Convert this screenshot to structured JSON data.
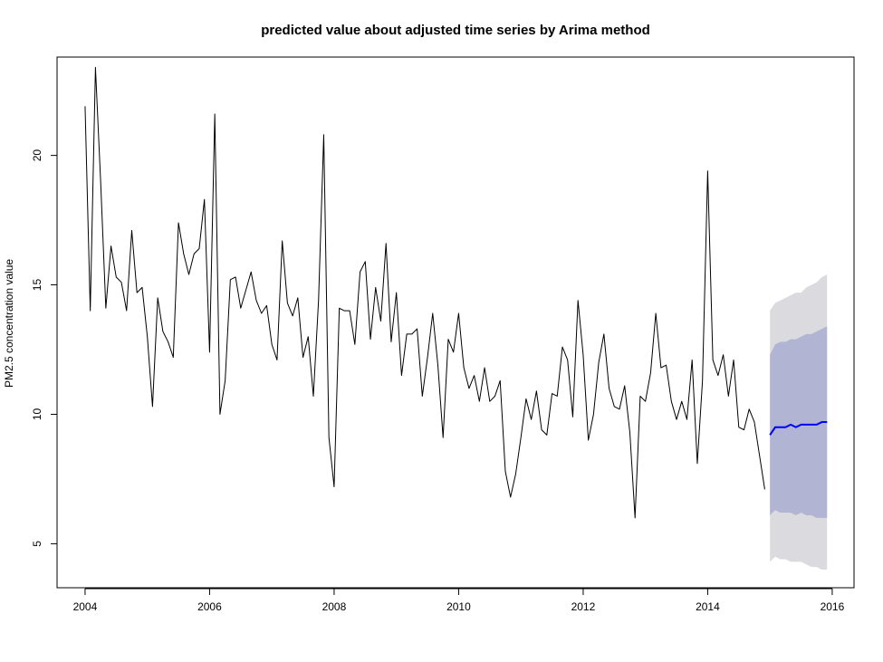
{
  "chart_data": {
    "type": "line",
    "title": "predicted value about adjusted time series by Arima method",
    "xlabel": "",
    "ylabel": "PM2.5 concentration value",
    "xlim": [
      2003.55,
      2016.35
    ],
    "ylim": [
      3.3,
      23.8
    ],
    "x_ticks": [
      "2004",
      "2006",
      "2008",
      "2010",
      "2012",
      "2014",
      "2016"
    ],
    "y_ticks": [
      "5",
      "10",
      "15",
      "20"
    ],
    "grid": false,
    "series": [
      {
        "role": "observed",
        "color": "#000000",
        "x_start": 2004.0,
        "x_step": 0.08333,
        "values": [
          21.9,
          14.0,
          23.4,
          19.0,
          14.1,
          16.5,
          15.3,
          15.1,
          14.0,
          17.1,
          14.7,
          14.9,
          13.0,
          10.3,
          14.5,
          13.2,
          12.8,
          12.2,
          17.4,
          16.2,
          15.4,
          16.2,
          16.4,
          18.3,
          12.4,
          21.6,
          10.0,
          11.3,
          15.2,
          15.3,
          14.1,
          14.8,
          15.5,
          14.4,
          13.9,
          14.2,
          12.7,
          12.1,
          16.7,
          14.3,
          13.8,
          14.5,
          12.2,
          13.0,
          10.7,
          14.4,
          20.8,
          9.1,
          7.2,
          14.1,
          14.0,
          14.0,
          12.7,
          15.5,
          15.9,
          12.9,
          14.9,
          13.6,
          16.6,
          12.8,
          14.7,
          11.5,
          13.1,
          13.1,
          13.3,
          10.7,
          12.2,
          13.9,
          11.9,
          9.1,
          12.9,
          12.4,
          13.9,
          11.8,
          11.0,
          11.5,
          10.5,
          11.8,
          10.5,
          10.7,
          11.3,
          7.8,
          6.8,
          7.7,
          9.1,
          10.6,
          9.8,
          10.9,
          9.4,
          9.2,
          10.8,
          10.7,
          12.6,
          12.1,
          9.9,
          14.4,
          12.3,
          9.0,
          10.0,
          12.0,
          13.1,
          11.0,
          10.3,
          10.2,
          11.1,
          9.3,
          6.0,
          10.7,
          10.5,
          11.6,
          13.9,
          11.8,
          11.9,
          10.5,
          9.8,
          10.5,
          9.8,
          12.1,
          8.1,
          11.3,
          19.4,
          12.1,
          11.5,
          12.3,
          10.7,
          12.1,
          9.5,
          9.4,
          10.2,
          9.7,
          8.4,
          7.1
        ]
      },
      {
        "role": "forecast",
        "color": "#0000ff",
        "x_start": 2015.0,
        "x_step": 0.08333,
        "values": [
          9.2,
          9.5,
          9.5,
          9.5,
          9.6,
          9.5,
          9.6,
          9.6,
          9.6,
          9.6,
          9.7,
          9.7
        ],
        "lo80": [
          6.1,
          6.3,
          6.2,
          6.2,
          6.2,
          6.1,
          6.2,
          6.1,
          6.1,
          6.0,
          6.0,
          6.0
        ],
        "hi80": [
          12.3,
          12.7,
          12.8,
          12.8,
          12.9,
          12.9,
          13.0,
          13.1,
          13.1,
          13.2,
          13.3,
          13.4
        ],
        "lo95": [
          4.3,
          4.5,
          4.4,
          4.4,
          4.3,
          4.3,
          4.3,
          4.2,
          4.1,
          4.1,
          4.0,
          4.0
        ],
        "hi95": [
          14.0,
          14.3,
          14.4,
          14.5,
          14.6,
          14.7,
          14.7,
          14.9,
          15.0,
          15.1,
          15.3,
          15.4
        ]
      }
    ],
    "band_colors": {
      "ci95": "#dbdbdf",
      "ci80": "#b1b5d3"
    }
  }
}
